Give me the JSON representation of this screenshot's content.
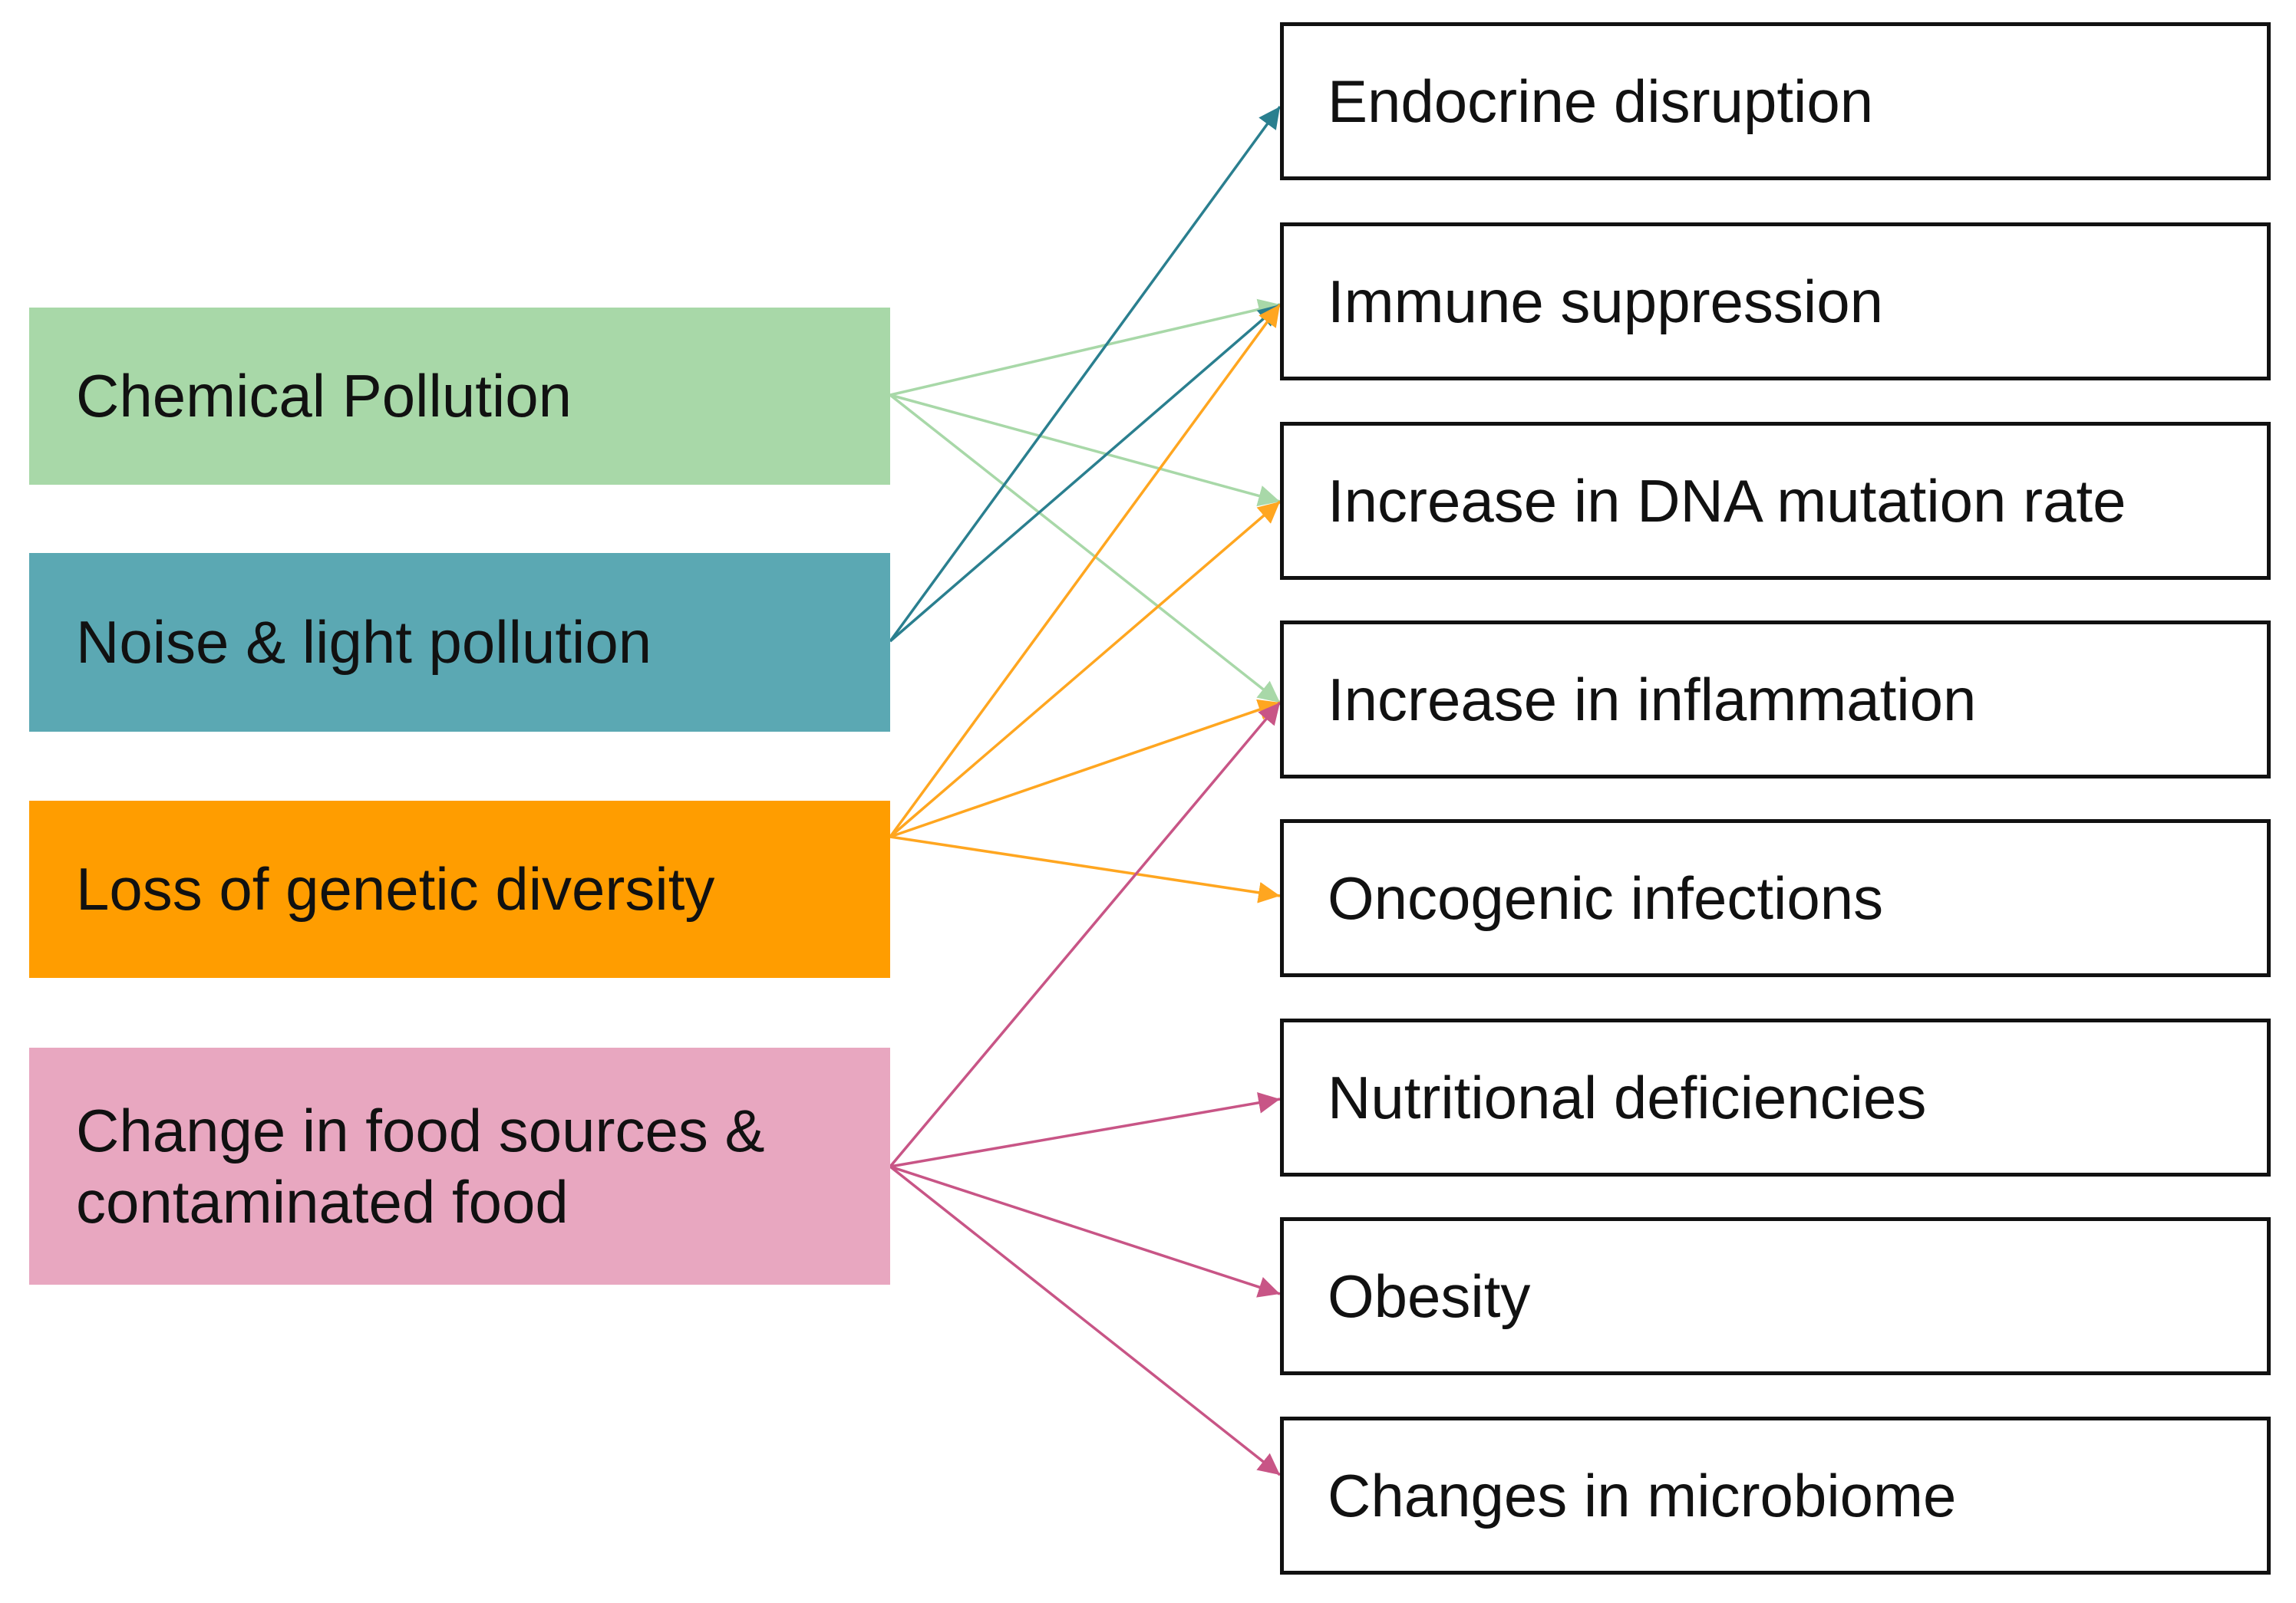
{
  "sources": [
    {
      "label": "Chemical Pollution"
    },
    {
      "label": "Noise & light pollution"
    },
    {
      "label": "Loss of genetic diversity"
    },
    {
      "label": "Change in food sources & contaminated food"
    }
  ],
  "effects": [
    {
      "label": "Endocrine disruption"
    },
    {
      "label": "Immune suppression"
    },
    {
      "label": "Increase in DNA mutation rate"
    },
    {
      "label": "Increase in inflammation"
    },
    {
      "label": "Oncogenic infections"
    },
    {
      "label": "Nutritional deficiencies"
    },
    {
      "label": "Obesity"
    },
    {
      "label": "Changes in microbiome"
    }
  ]
}
